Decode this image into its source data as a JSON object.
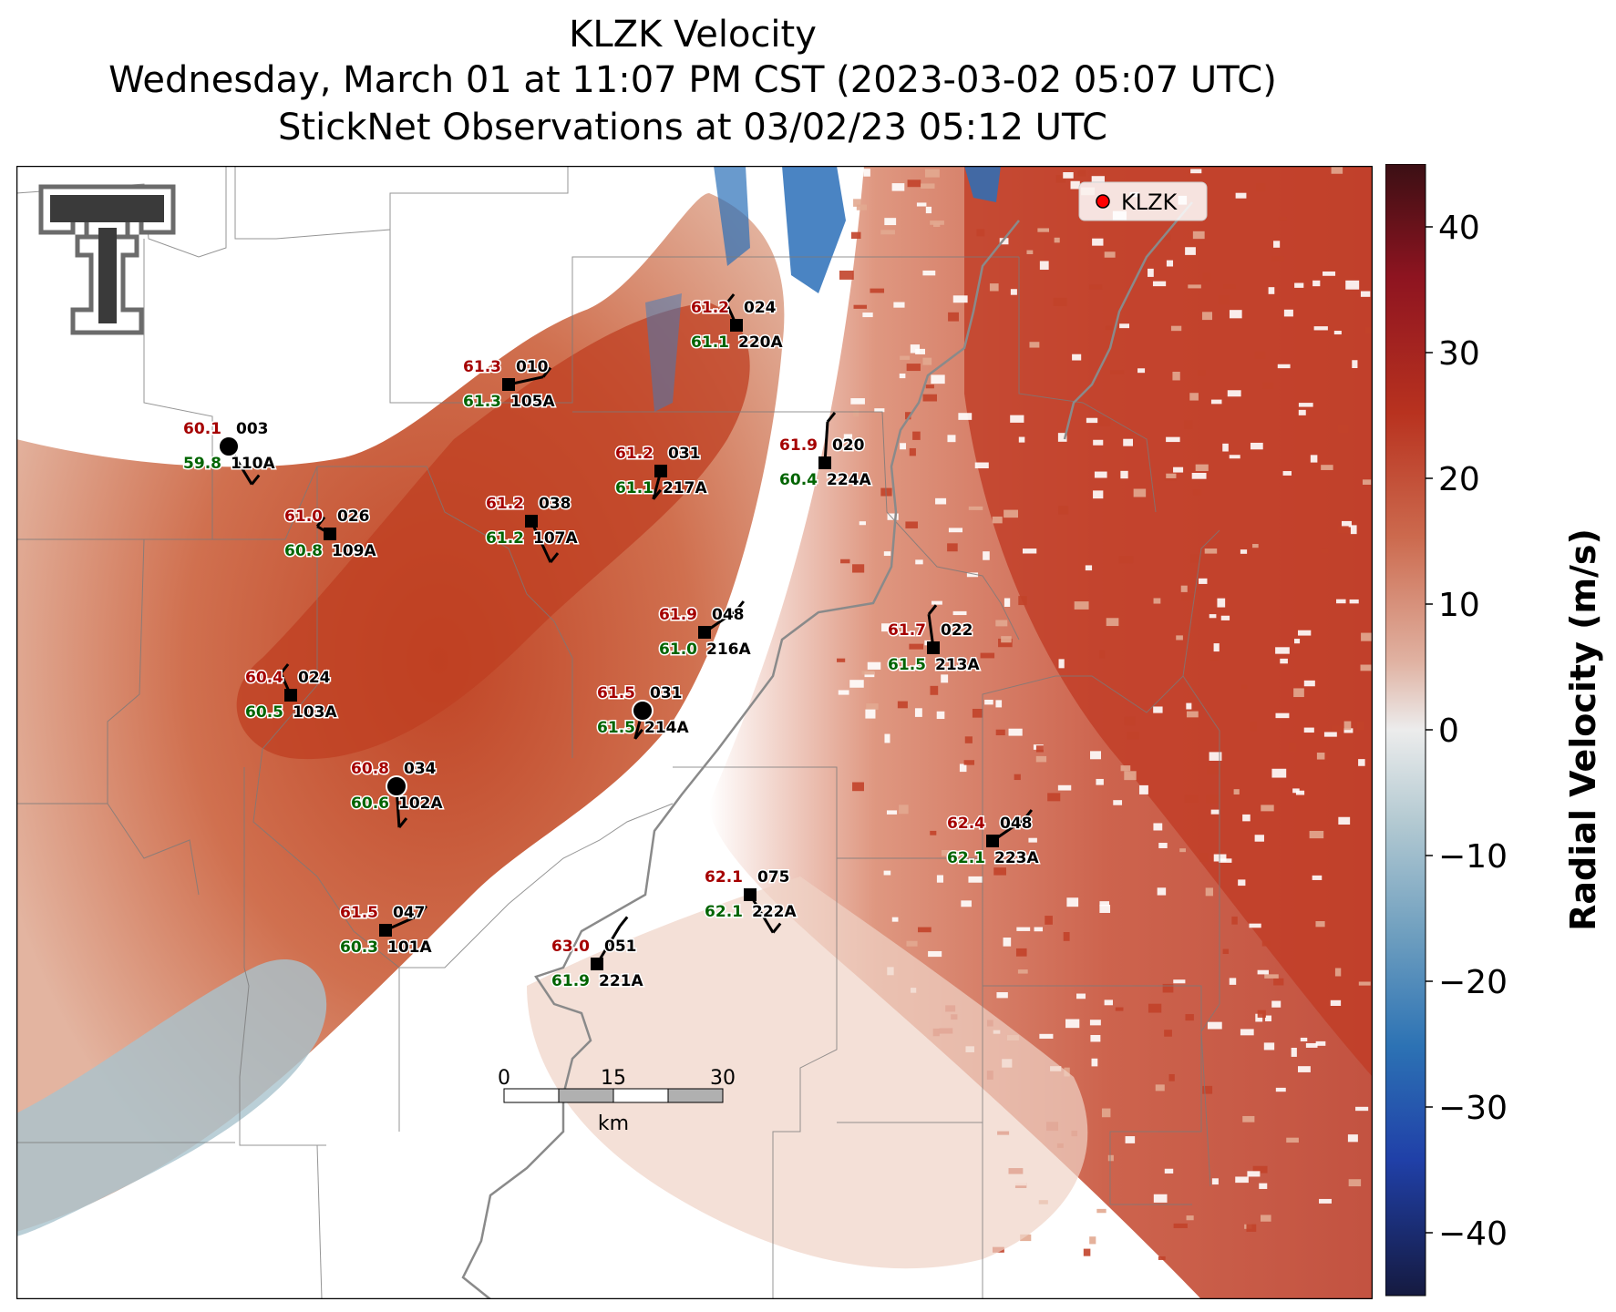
{
  "title": {
    "line1": "KLZK Velocity",
    "line2": "Wednesday, March 01 at 11:07 PM CST (2023-03-02 05:07 UTC)",
    "line3": "StickNet Observations at 03/02/23 05:12 UTC"
  },
  "legend": {
    "label": "KLZK",
    "marker_color": "#ff0000"
  },
  "colorbar": {
    "label": "Radial Velocity (m/s)",
    "ticks": [
      "40",
      "30",
      "20",
      "10",
      "0",
      "−10",
      "−20",
      "−30",
      "−40"
    ],
    "tick_values": [
      40,
      30,
      20,
      10,
      0,
      -10,
      -20,
      -30,
      -40
    ],
    "range": [
      -45,
      45
    ],
    "colors": [
      "#1a1f4a",
      "#1f3fa8",
      "#1f6fb8",
      "#5a9ec4",
      "#a8c4cf",
      "#e8e8e8",
      "#e4b8a8",
      "#d87a5a",
      "#c2432a",
      "#a01a1e",
      "#4a1015"
    ]
  },
  "scalebar": {
    "ticks": [
      "0",
      "15",
      "30"
    ],
    "unit": "km"
  },
  "colors": {
    "temp": "#a50000",
    "dew": "#006400",
    "station": "#000000"
  },
  "stations": [
    {
      "id": "110A",
      "temp": "60.1",
      "dew": "59.8",
      "dir": "003",
      "shape": "circle"
    },
    {
      "id": "105A",
      "temp": "61.3",
      "dew": "61.3",
      "dir": "010",
      "shape": "square"
    },
    {
      "id": "220A",
      "temp": "61.2",
      "dew": "61.1",
      "dir": "024",
      "shape": "square"
    },
    {
      "id": "217A",
      "temp": "61.2",
      "dew": "61.1",
      "dir": "031",
      "shape": "square"
    },
    {
      "id": "224A",
      "temp": "61.9",
      "dew": "60.4",
      "dir": "020",
      "shape": "square"
    },
    {
      "id": "109A",
      "temp": "61.0",
      "dew": "60.8",
      "dir": "026",
      "shape": "square"
    },
    {
      "id": "107A",
      "temp": "61.2",
      "dew": "61.2",
      "dir": "038",
      "shape": "square"
    },
    {
      "id": "216A",
      "temp": "61.9",
      "dew": "61.0",
      "dir": "048",
      "shape": "square"
    },
    {
      "id": "213A",
      "temp": "61.7",
      "dew": "61.5",
      "dir": "022",
      "shape": "square"
    },
    {
      "id": "103A",
      "temp": "60.4",
      "dew": "60.5",
      "dir": "024",
      "shape": "square"
    },
    {
      "id": "214A",
      "temp": "61.5",
      "dew": "61.5",
      "dir": "031",
      "shape": "circle"
    },
    {
      "id": "102A",
      "temp": "60.8",
      "dew": "60.6",
      "dir": "034",
      "shape": "circle"
    },
    {
      "id": "223A",
      "temp": "62.4",
      "dew": "62.1",
      "dir": "048",
      "shape": "square"
    },
    {
      "id": "222A",
      "temp": "62.1",
      "dew": "62.1",
      "dir": "075",
      "shape": "square"
    },
    {
      "id": "101A",
      "temp": "61.5",
      "dew": "60.3",
      "dir": "047",
      "shape": "square"
    },
    {
      "id": "221A",
      "temp": "63.0",
      "dew": "61.9",
      "dir": "051",
      "shape": "square"
    }
  ]
}
